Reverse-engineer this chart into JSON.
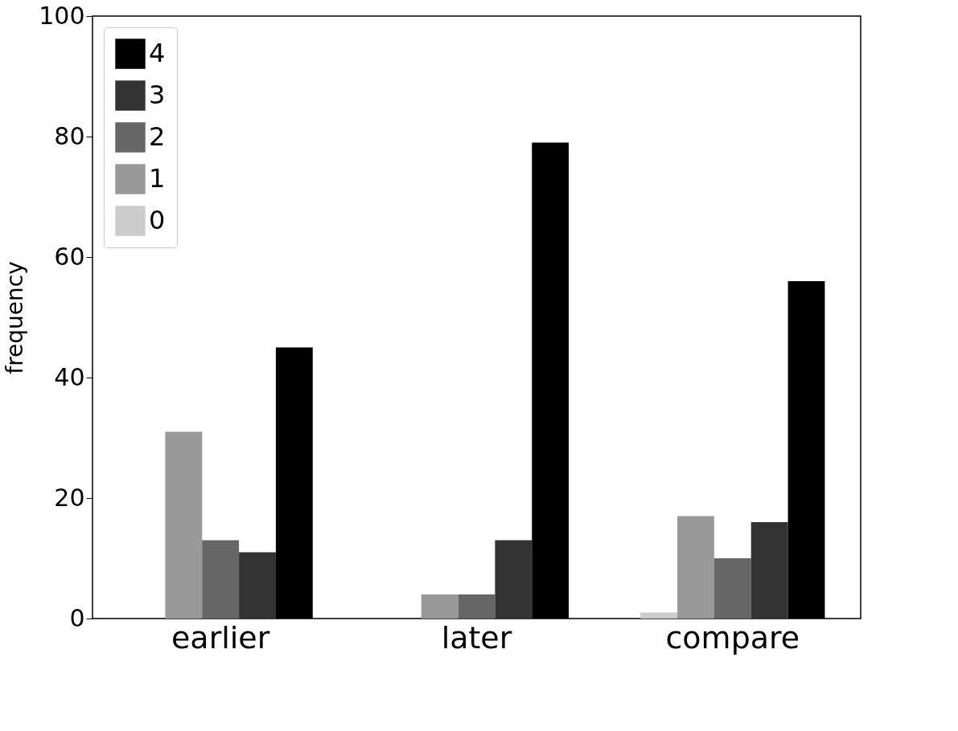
{
  "chart_data": {
    "type": "bar",
    "ylabel": "frequency",
    "categories": [
      "earlier",
      "later",
      "compare"
    ],
    "series": [
      {
        "name": "0",
        "color": "#cccccc",
        "values": [
          0,
          0,
          1
        ]
      },
      {
        "name": "1",
        "color": "#999999",
        "values": [
          31,
          4,
          17
        ]
      },
      {
        "name": "2",
        "color": "#666666",
        "values": [
          13,
          4,
          10
        ]
      },
      {
        "name": "3",
        "color": "#333333",
        "values": [
          11,
          13,
          16
        ]
      },
      {
        "name": "4",
        "color": "#000000",
        "values": [
          45,
          79,
          56
        ]
      }
    ],
    "ylim": [
      0,
      100
    ],
    "yticks": [
      0,
      20,
      40,
      60,
      80,
      100
    ],
    "grid": false,
    "legend": "top left"
  }
}
